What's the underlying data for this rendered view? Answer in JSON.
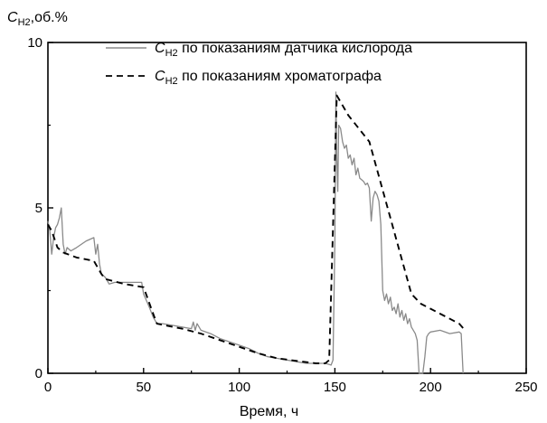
{
  "chart_data": {
    "type": "line",
    "ylabel": {
      "main": "C",
      "sub": "H2",
      "suffix": ",об.%"
    },
    "xlabel": "Время, ч",
    "xlim": [
      0,
      250
    ],
    "ylim": [
      0,
      10
    ],
    "x_ticks": [
      0,
      50,
      100,
      150,
      200,
      250
    ],
    "y_ticks": [
      0,
      5,
      10
    ],
    "grid": false,
    "legend_position": "top-right",
    "series": [
      {
        "legend_main": "C",
        "legend_sub": "H2",
        "legend_rest": " по показаниям датчика кислорода",
        "style": "solid",
        "color": "#8a8a8a",
        "points": [
          [
            0,
            4.6
          ],
          [
            1,
            4.3
          ],
          [
            2,
            3.6
          ],
          [
            3,
            4.1
          ],
          [
            4,
            4.4
          ],
          [
            5,
            4.5
          ],
          [
            6,
            4.7
          ],
          [
            7,
            5.0
          ],
          [
            8,
            3.9
          ],
          [
            9,
            3.6
          ],
          [
            10,
            3.8
          ],
          [
            12,
            3.7
          ],
          [
            15,
            3.8
          ],
          [
            20,
            4.0
          ],
          [
            24,
            4.1
          ],
          [
            25,
            3.6
          ],
          [
            26,
            3.9
          ],
          [
            27,
            3.3
          ],
          [
            28,
            3.0
          ],
          [
            30,
            2.9
          ],
          [
            32,
            2.7
          ],
          [
            35,
            2.75
          ],
          [
            40,
            2.75
          ],
          [
            45,
            2.75
          ],
          [
            49,
            2.75
          ],
          [
            50,
            2.4
          ],
          [
            53,
            2.0
          ],
          [
            55,
            1.7
          ],
          [
            57,
            1.5
          ],
          [
            60,
            1.5
          ],
          [
            65,
            1.45
          ],
          [
            70,
            1.4
          ],
          [
            75,
            1.35
          ],
          [
            76,
            1.55
          ],
          [
            77,
            1.3
          ],
          [
            78,
            1.5
          ],
          [
            80,
            1.3
          ],
          [
            85,
            1.2
          ],
          [
            90,
            1.05
          ],
          [
            95,
            0.95
          ],
          [
            100,
            0.85
          ],
          [
            105,
            0.75
          ],
          [
            110,
            0.6
          ],
          [
            115,
            0.5
          ],
          [
            120,
            0.45
          ],
          [
            125,
            0.4
          ],
          [
            130,
            0.35
          ],
          [
            135,
            0.3
          ],
          [
            140,
            0.3
          ],
          [
            145,
            0.3
          ],
          [
            148,
            0.25
          ],
          [
            149,
            0.4
          ],
          [
            150,
            4.0
          ],
          [
            150.5,
            8.5
          ],
          [
            151,
            6.5
          ],
          [
            151.5,
            5.5
          ],
          [
            152,
            7.5
          ],
          [
            153,
            7.4
          ],
          [
            154,
            7.0
          ],
          [
            155,
            6.8
          ],
          [
            156,
            6.9
          ],
          [
            157,
            6.5
          ],
          [
            158,
            6.6
          ],
          [
            159,
            6.3
          ],
          [
            160,
            6.5
          ],
          [
            161,
            6.0
          ],
          [
            162,
            6.2
          ],
          [
            163,
            5.9
          ],
          [
            164,
            5.85
          ],
          [
            165,
            5.8
          ],
          [
            166,
            5.7
          ],
          [
            167,
            5.75
          ],
          [
            168,
            5.6
          ],
          [
            169,
            4.6
          ],
          [
            170,
            5.3
          ],
          [
            171,
            5.5
          ],
          [
            172,
            5.4
          ],
          [
            173,
            5.2
          ],
          [
            174,
            4.5
          ],
          [
            175,
            2.5
          ],
          [
            176,
            2.2
          ],
          [
            177,
            2.4
          ],
          [
            178,
            2.1
          ],
          [
            179,
            2.3
          ],
          [
            180,
            1.9
          ],
          [
            181,
            2.0
          ],
          [
            182,
            1.8
          ],
          [
            183,
            2.1
          ],
          [
            184,
            1.7
          ],
          [
            185,
            1.9
          ],
          [
            186,
            1.6
          ],
          [
            187,
            1.8
          ],
          [
            188,
            1.5
          ],
          [
            189,
            1.65
          ],
          [
            190,
            1.4
          ],
          [
            192,
            1.2
          ],
          [
            193,
            1.0
          ],
          [
            194,
            0.0
          ],
          [
            195,
            0.0
          ],
          [
            196,
            0.0
          ],
          [
            197,
            0.5
          ],
          [
            198,
            1.1
          ],
          [
            199,
            1.2
          ],
          [
            200,
            1.25
          ],
          [
            205,
            1.3
          ],
          [
            210,
            1.2
          ],
          [
            215,
            1.25
          ],
          [
            216,
            1.2
          ],
          [
            217,
            0.0
          ]
        ]
      },
      {
        "legend_main": "C",
        "legend_sub": "H2",
        "legend_rest": " по показаниям хроматографа",
        "style": "dashed",
        "color": "#000000",
        "points": [
          [
            0,
            4.5
          ],
          [
            2,
            4.3
          ],
          [
            5,
            3.8
          ],
          [
            8,
            3.65
          ],
          [
            15,
            3.5
          ],
          [
            24,
            3.4
          ],
          [
            28,
            3.0
          ],
          [
            30,
            2.85
          ],
          [
            40,
            2.7
          ],
          [
            50,
            2.6
          ],
          [
            55,
            1.8
          ],
          [
            57,
            1.5
          ],
          [
            70,
            1.35
          ],
          [
            80,
            1.2
          ],
          [
            100,
            0.8
          ],
          [
            110,
            0.6
          ],
          [
            120,
            0.45
          ],
          [
            140,
            0.3
          ],
          [
            145,
            0.3
          ],
          [
            147,
            0.4
          ],
          [
            151,
            8.4
          ],
          [
            157,
            7.8
          ],
          [
            168,
            7.0
          ],
          [
            190,
            2.4
          ],
          [
            195,
            2.1
          ],
          [
            205,
            1.8
          ],
          [
            215,
            1.5
          ],
          [
            218,
            1.3
          ]
        ]
      }
    ]
  }
}
